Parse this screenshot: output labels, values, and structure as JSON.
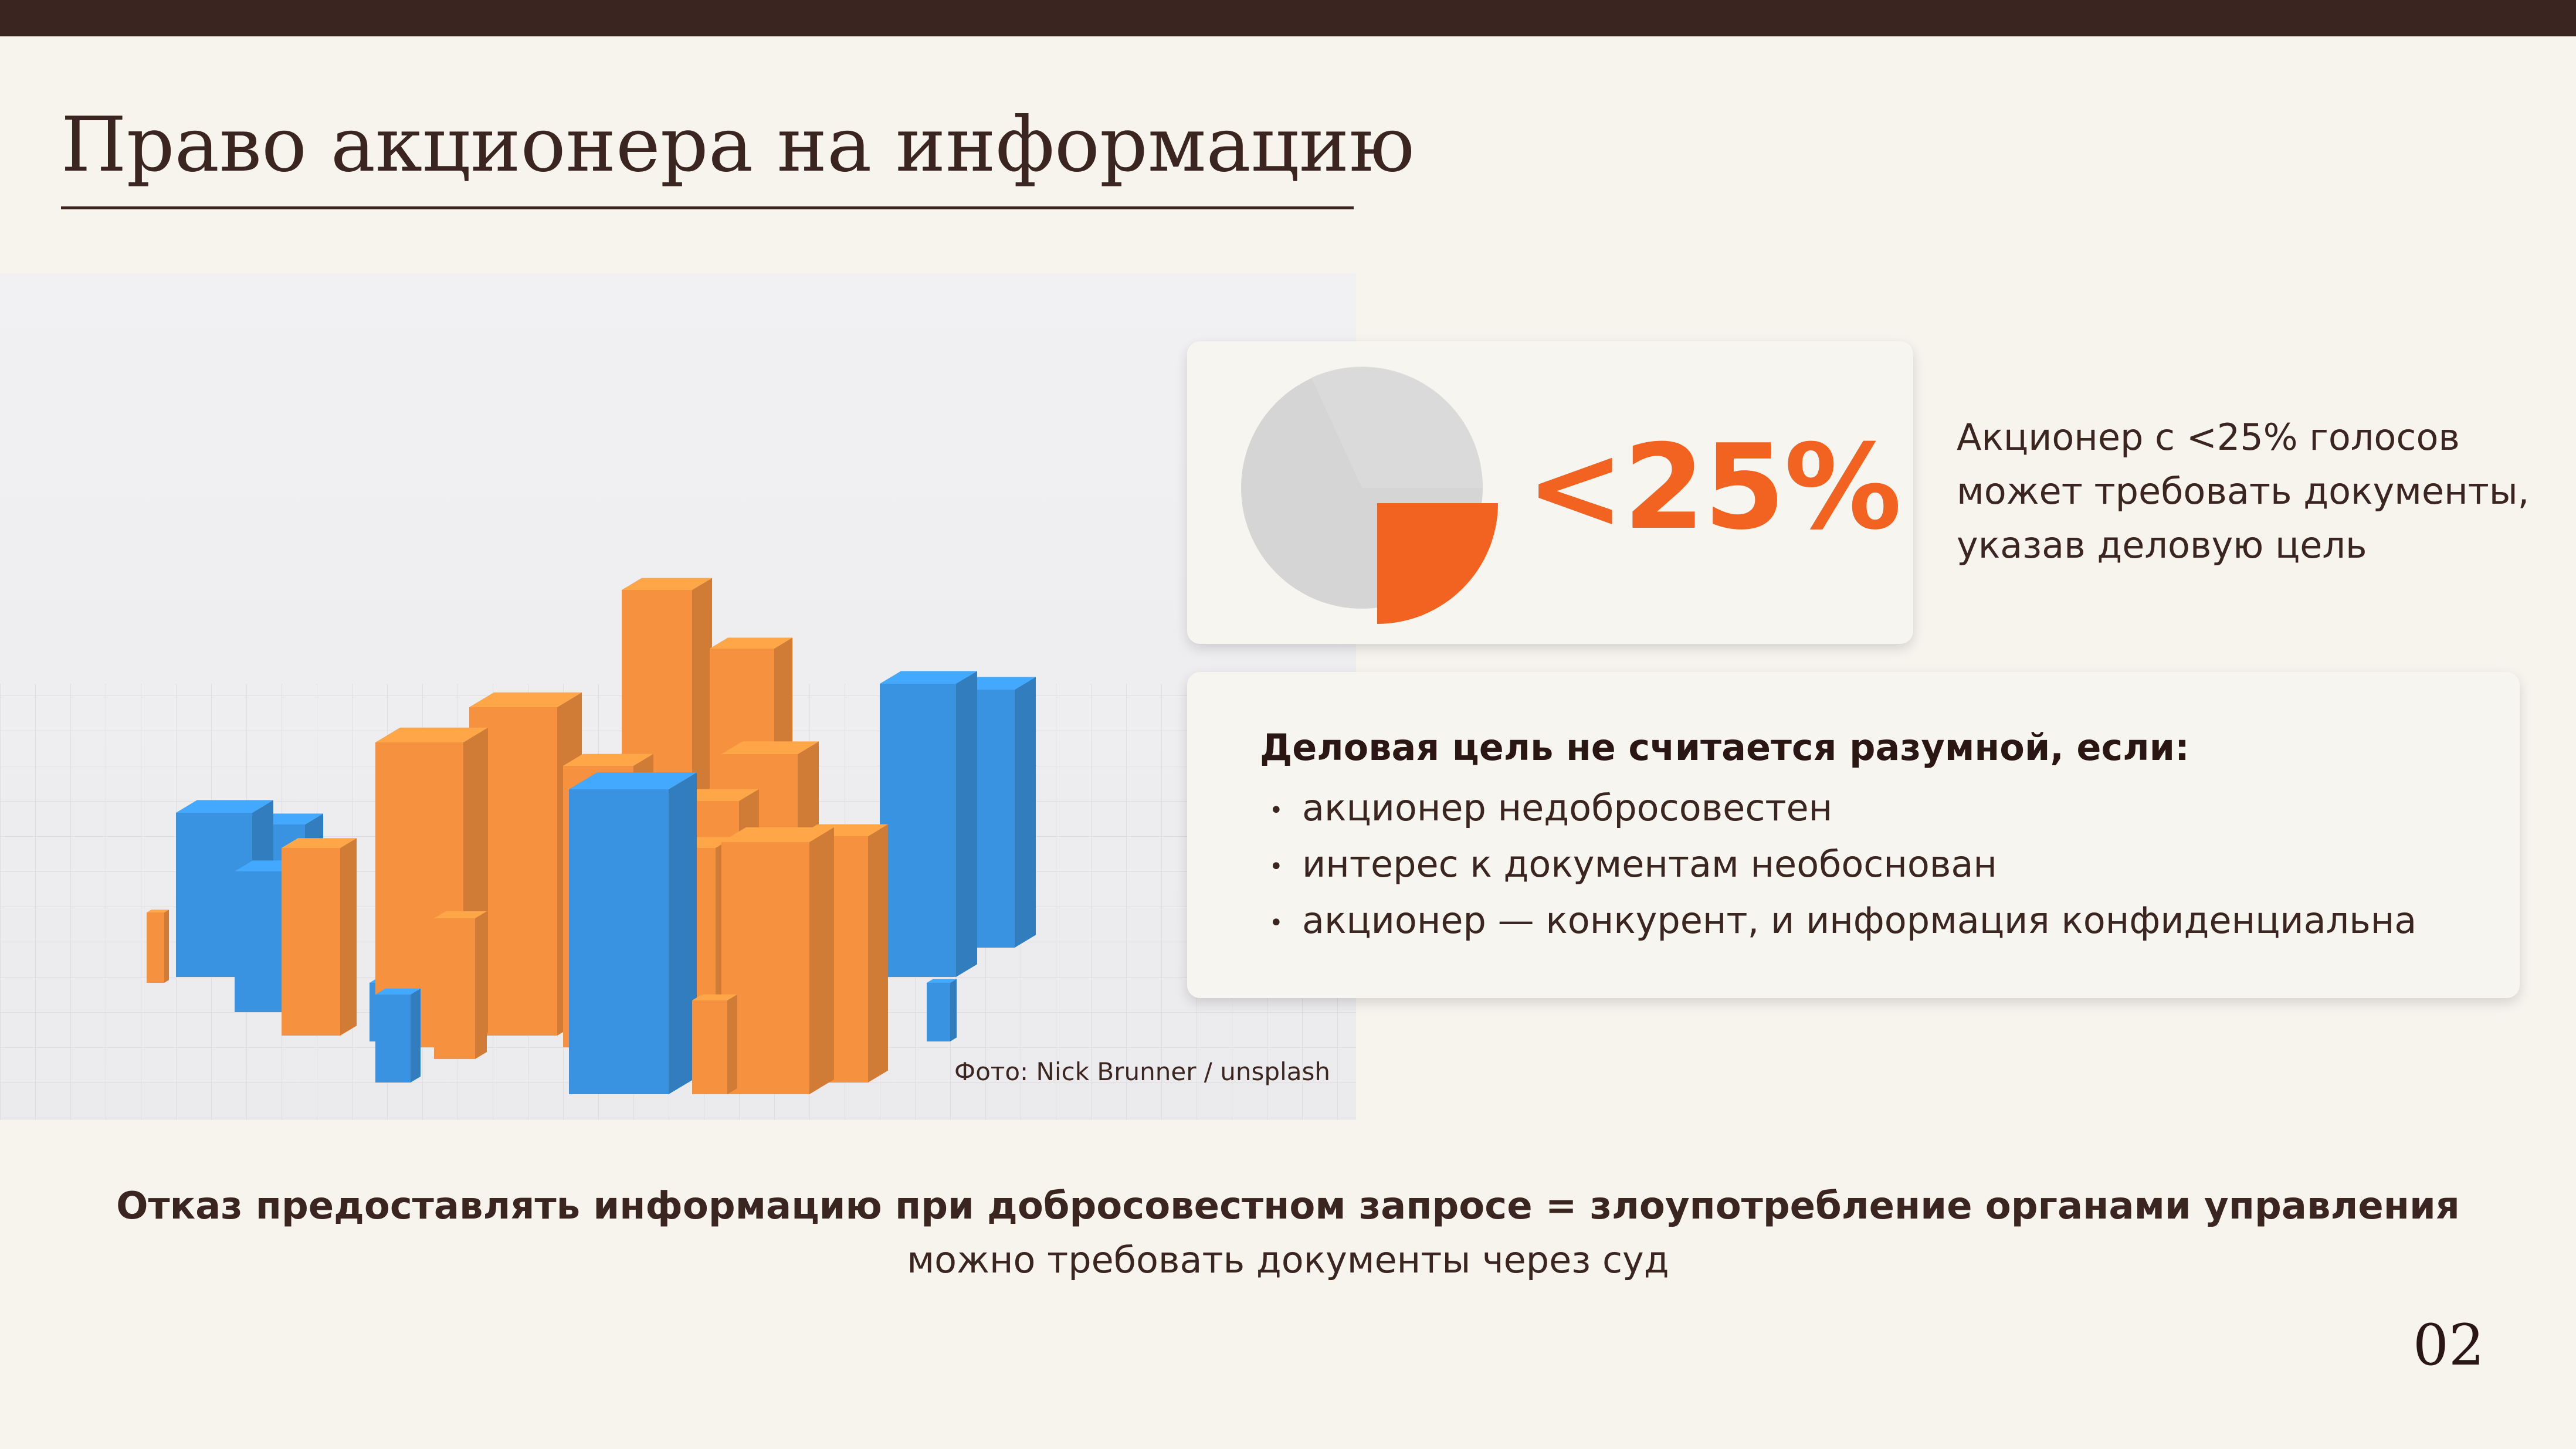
{
  "slide": {
    "title": "Право акционера на информацию",
    "page_number": "02"
  },
  "photo": {
    "credit": "Фото: Nick Brunner / unsplash",
    "colors": {
      "orange": "#f5913f",
      "blue": "#3a93e0"
    }
  },
  "stat_card": {
    "value": "<25%",
    "description": "Акционер с <25% голосов может требовать документы, указав деловую цель",
    "pie_share_percent": 25,
    "accent_color": "#f26322"
  },
  "criteria_card": {
    "heading": "Деловая цель не считается разумной, если:",
    "items": [
      "акционер недобросовестен",
      "интерес к документам необоснован",
      "акционер — конкурент, и информация конфиденциальна"
    ]
  },
  "footer": {
    "main": "Отказ предоставлять информацию при добросовестном запросе = злоупотребление органами управления",
    "sub": "можно требовать документы через суд"
  }
}
